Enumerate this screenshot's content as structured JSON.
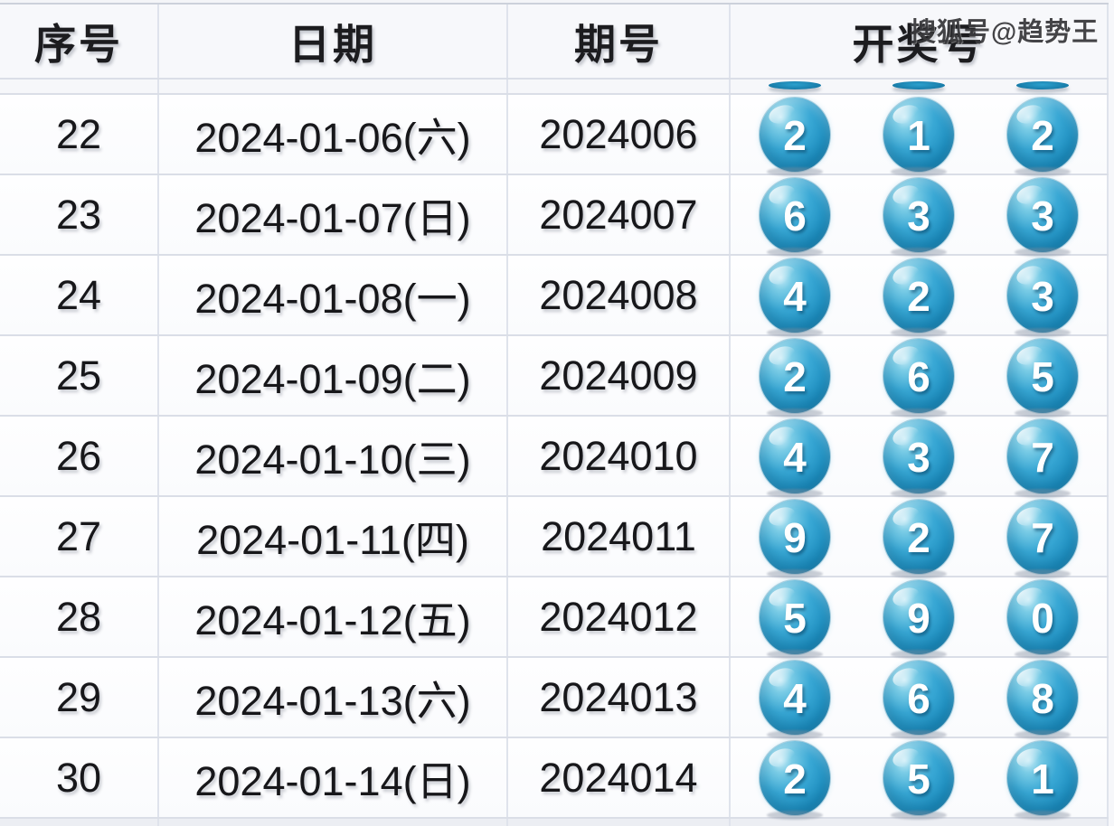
{
  "watermark": "搜狐号@趋势王",
  "table": {
    "headers": [
      "序号",
      "日期",
      "期号",
      "开奖号"
    ],
    "rows": [
      {
        "seq": "22",
        "date": "2024-01-06(六)",
        "period": "2024006",
        "balls": [
          "2",
          "1",
          "2"
        ]
      },
      {
        "seq": "23",
        "date": "2024-01-07(日)",
        "period": "2024007",
        "balls": [
          "6",
          "3",
          "3"
        ]
      },
      {
        "seq": "24",
        "date": "2024-01-08(一)",
        "period": "2024008",
        "balls": [
          "4",
          "2",
          "3"
        ]
      },
      {
        "seq": "25",
        "date": "2024-01-09(二)",
        "period": "2024009",
        "balls": [
          "2",
          "6",
          "5"
        ]
      },
      {
        "seq": "26",
        "date": "2024-01-10(三)",
        "period": "2024010",
        "balls": [
          "4",
          "3",
          "7"
        ]
      },
      {
        "seq": "27",
        "date": "2024-01-11(四)",
        "period": "2024011",
        "balls": [
          "9",
          "2",
          "7"
        ]
      },
      {
        "seq": "28",
        "date": "2024-01-12(五)",
        "period": "2024012",
        "balls": [
          "5",
          "9",
          "0"
        ]
      },
      {
        "seq": "29",
        "date": "2024-01-13(六)",
        "period": "2024013",
        "balls": [
          "4",
          "6",
          "8"
        ]
      },
      {
        "seq": "30",
        "date": "2024-01-14(日)",
        "period": "2024014",
        "balls": [
          "2",
          "5",
          "1"
        ]
      }
    ]
  },
  "colors": {
    "ball": "#2aa3d4",
    "ball_dark": "#1a82b2",
    "border": "#dadee7",
    "header_text": "#1c1c1f",
    "body_text": "#17171a",
    "watermark_text": "#343437"
  }
}
